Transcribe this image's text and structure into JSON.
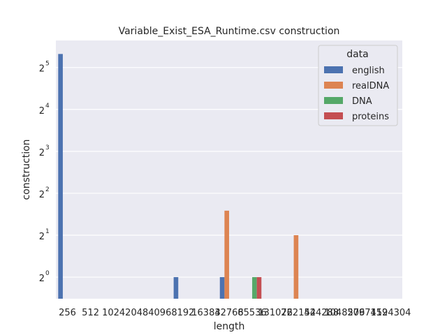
{
  "chart_data": {
    "type": "bar",
    "title": "Variable_Exist_ESA_Runtime.csv construction",
    "xlabel": "length",
    "ylabel": "construction",
    "y_scale": "log2",
    "y_ticks": [
      {
        "base": "2",
        "exp": "0"
      },
      {
        "base": "2",
        "exp": "1"
      },
      {
        "base": "2",
        "exp": "2"
      },
      {
        "base": "2",
        "exp": "3"
      },
      {
        "base": "2",
        "exp": "4"
      },
      {
        "base": "2",
        "exp": "5"
      }
    ],
    "ylim": [
      0.7,
      50
    ],
    "grid": true,
    "legend_placement": "top-right",
    "legend_title": "data",
    "categories": [
      "256",
      "512",
      "1024",
      "2048",
      "4096",
      "8192",
      "16384",
      "32768",
      "65536",
      "131072",
      "262144",
      "524288",
      "1048576",
      "2097152",
      "4194304"
    ],
    "series": [
      {
        "name": "english",
        "color": "#4c72b0",
        "values": [
          40,
          null,
          null,
          null,
          null,
          1,
          null,
          1,
          null,
          null,
          null,
          null,
          null,
          null,
          null
        ]
      },
      {
        "name": "realDNA",
        "color": "#dd8452",
        "values": [
          null,
          null,
          null,
          null,
          null,
          null,
          null,
          3,
          null,
          null,
          2,
          null,
          null,
          null,
          null
        ]
      },
      {
        "name": "DNA",
        "color": "#55a868",
        "values": [
          null,
          null,
          null,
          null,
          null,
          null,
          null,
          null,
          1,
          null,
          null,
          null,
          null,
          null,
          null
        ]
      },
      {
        "name": "proteins",
        "color": "#c44e52",
        "values": [
          null,
          null,
          null,
          null,
          null,
          null,
          null,
          null,
          1,
          null,
          null,
          null,
          null,
          null,
          null
        ]
      }
    ]
  }
}
